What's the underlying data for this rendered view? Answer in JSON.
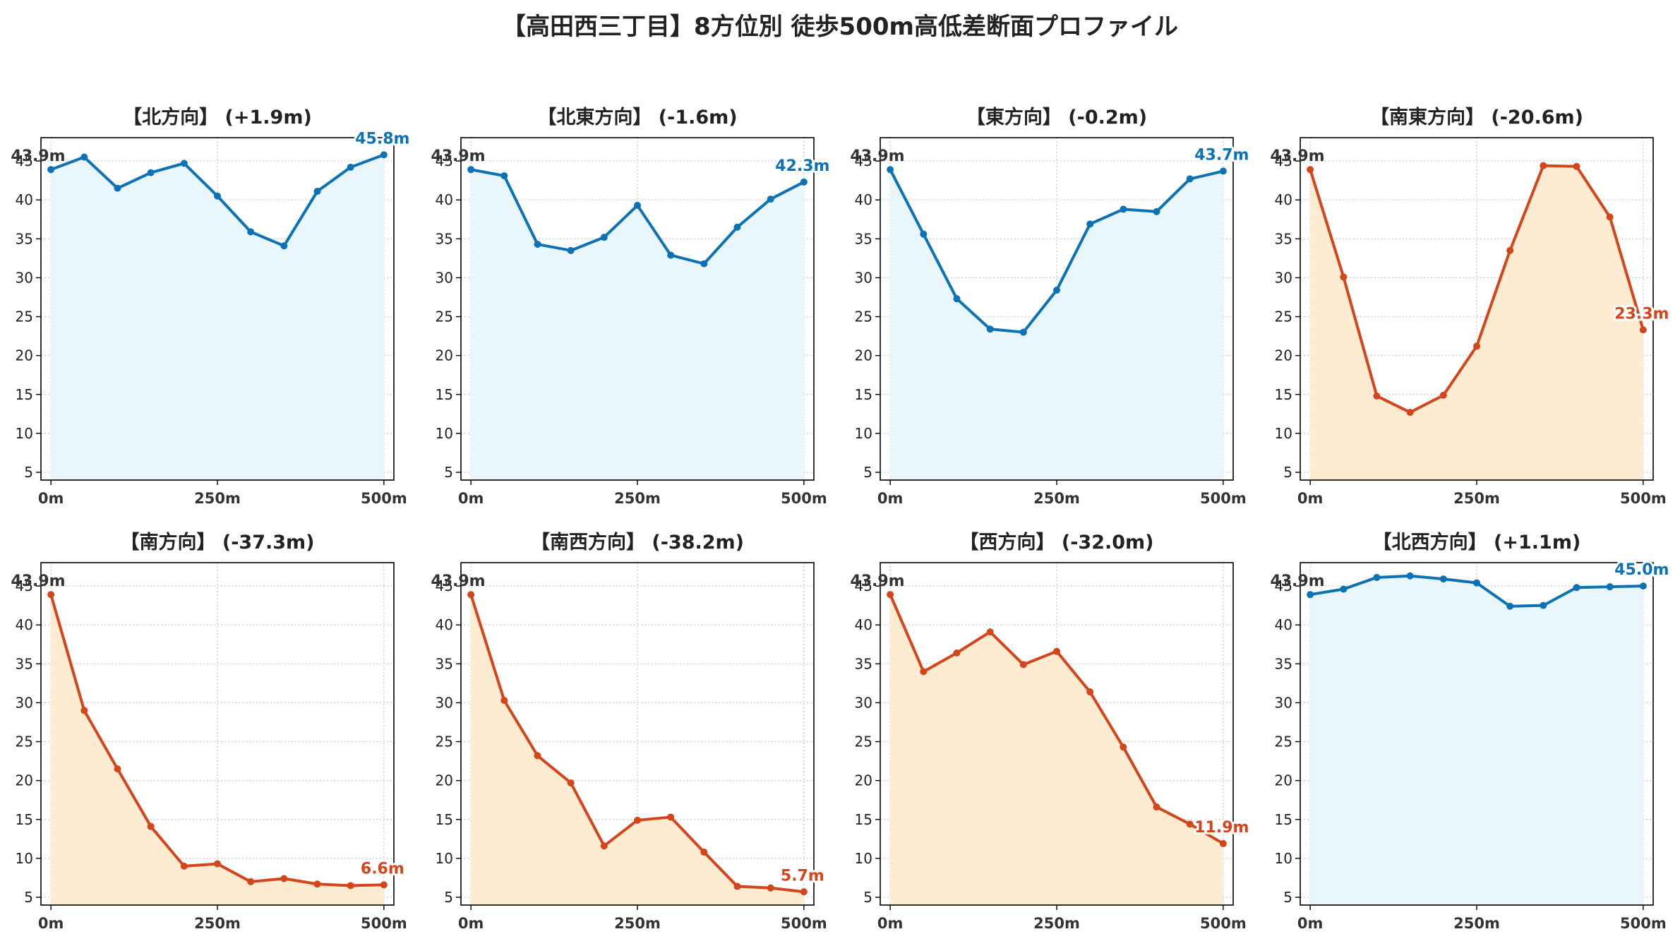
{
  "title": "【高田西三丁目】8方位別 徒歩500m高低差断面プロファイル",
  "colors": {
    "up": "#0a72b5",
    "up_fill": "#e9f6fb",
    "down": "#d5451b",
    "down_fill": "#fdecd2",
    "grid": "#c8c8c8",
    "start_label": "#333333"
  },
  "chart_data": [
    {
      "type": "line",
      "title": "【北方向】 (+1.9m)",
      "trend": "up",
      "x": [
        0,
        50,
        100,
        150,
        200,
        250,
        300,
        350,
        400,
        450,
        500
      ],
      "values": [
        43.9,
        45.5,
        41.5,
        43.5,
        44.7,
        40.5,
        35.9,
        34.1,
        41.1,
        44.2,
        45.8
      ],
      "start_label": "43.9m",
      "end_label": "45.8m",
      "xlim": [
        -15,
        515
      ],
      "ylim": [
        4,
        48
      ],
      "xticks": [
        0,
        250,
        500
      ],
      "xticklabels": [
        "0m",
        "250m",
        "500m"
      ],
      "yticks": [
        5,
        10,
        15,
        20,
        25,
        30,
        35,
        40,
        45
      ],
      "grid": true
    },
    {
      "type": "line",
      "title": "【北東方向】 (-1.6m)",
      "trend": "up",
      "x": [
        0,
        50,
        100,
        150,
        200,
        250,
        300,
        350,
        400,
        450,
        500
      ],
      "values": [
        43.9,
        43.1,
        34.3,
        33.5,
        35.2,
        39.3,
        32.9,
        31.8,
        36.5,
        40.1,
        42.3
      ],
      "start_label": "43.9m",
      "end_label": "42.3m",
      "xlim": [
        -15,
        515
      ],
      "ylim": [
        4,
        48
      ],
      "xticks": [
        0,
        250,
        500
      ],
      "xticklabels": [
        "0m",
        "250m",
        "500m"
      ],
      "yticks": [
        5,
        10,
        15,
        20,
        25,
        30,
        35,
        40,
        45
      ],
      "grid": true
    },
    {
      "type": "line",
      "title": "【東方向】 (-0.2m)",
      "trend": "up",
      "x": [
        0,
        50,
        100,
        150,
        200,
        250,
        300,
        350,
        400,
        450,
        500
      ],
      "values": [
        43.9,
        35.6,
        27.3,
        23.4,
        23.0,
        28.4,
        36.9,
        38.8,
        38.5,
        42.7,
        43.7
      ],
      "start_label": "43.9m",
      "end_label": "43.7m",
      "xlim": [
        -15,
        515
      ],
      "ylim": [
        4,
        48
      ],
      "xticks": [
        0,
        250,
        500
      ],
      "xticklabels": [
        "0m",
        "250m",
        "500m"
      ],
      "yticks": [
        5,
        10,
        15,
        20,
        25,
        30,
        35,
        40,
        45
      ],
      "grid": true
    },
    {
      "type": "line",
      "title": "【南東方向】 (-20.6m)",
      "trend": "down",
      "x": [
        0,
        50,
        100,
        150,
        200,
        250,
        300,
        350,
        400,
        450,
        500
      ],
      "values": [
        43.9,
        30.1,
        14.8,
        12.7,
        14.9,
        21.2,
        33.5,
        44.4,
        44.3,
        37.8,
        23.3
      ],
      "start_label": "43.9m",
      "end_label": "23.3m",
      "xlim": [
        -15,
        515
      ],
      "ylim": [
        4,
        48
      ],
      "xticks": [
        0,
        250,
        500
      ],
      "xticklabels": [
        "0m",
        "250m",
        "500m"
      ],
      "yticks": [
        5,
        10,
        15,
        20,
        25,
        30,
        35,
        40,
        45
      ],
      "grid": true
    },
    {
      "type": "line",
      "title": "【南方向】 (-37.3m)",
      "trend": "down",
      "x": [
        0,
        50,
        100,
        150,
        200,
        250,
        300,
        350,
        400,
        450,
        500
      ],
      "values": [
        43.9,
        29.0,
        21.5,
        14.1,
        9.0,
        9.3,
        7.0,
        7.4,
        6.7,
        6.5,
        6.6
      ],
      "start_label": "43.9m",
      "end_label": "6.6m",
      "xlim": [
        -15,
        515
      ],
      "ylim": [
        4,
        48
      ],
      "xticks": [
        0,
        250,
        500
      ],
      "xticklabels": [
        "0m",
        "250m",
        "500m"
      ],
      "yticks": [
        5,
        10,
        15,
        20,
        25,
        30,
        35,
        40,
        45
      ],
      "grid": true
    },
    {
      "type": "line",
      "title": "【南西方向】 (-38.2m)",
      "trend": "down",
      "x": [
        0,
        50,
        100,
        150,
        200,
        250,
        300,
        350,
        400,
        450,
        500
      ],
      "values": [
        43.9,
        30.3,
        23.2,
        19.7,
        11.6,
        14.9,
        15.3,
        10.8,
        6.4,
        6.2,
        5.7
      ],
      "start_label": "43.9m",
      "end_label": "5.7m",
      "xlim": [
        -15,
        515
      ],
      "ylim": [
        4,
        48
      ],
      "xticks": [
        0,
        250,
        500
      ],
      "xticklabels": [
        "0m",
        "250m",
        "500m"
      ],
      "yticks": [
        5,
        10,
        15,
        20,
        25,
        30,
        35,
        40,
        45
      ],
      "grid": true
    },
    {
      "type": "line",
      "title": "【西方向】 (-32.0m)",
      "trend": "down",
      "x": [
        0,
        50,
        100,
        150,
        200,
        250,
        300,
        350,
        400,
        450,
        500
      ],
      "values": [
        43.9,
        34.0,
        36.4,
        39.1,
        34.9,
        36.6,
        31.4,
        24.3,
        16.6,
        14.4,
        11.9
      ],
      "start_label": "43.9m",
      "end_label": "11.9m",
      "xlim": [
        -15,
        515
      ],
      "ylim": [
        4,
        48
      ],
      "xticks": [
        0,
        250,
        500
      ],
      "xticklabels": [
        "0m",
        "250m",
        "500m"
      ],
      "yticks": [
        5,
        10,
        15,
        20,
        25,
        30,
        35,
        40,
        45
      ],
      "grid": true
    },
    {
      "type": "line",
      "title": "【北西方向】 (+1.1m)",
      "trend": "up",
      "x": [
        0,
        50,
        100,
        150,
        200,
        250,
        300,
        350,
        400,
        450,
        500
      ],
      "values": [
        43.9,
        44.6,
        46.1,
        46.3,
        45.9,
        45.4,
        42.4,
        42.5,
        44.8,
        44.9,
        45.0
      ],
      "start_label": "43.9m",
      "end_label": "45.0m",
      "xlim": [
        -15,
        515
      ],
      "ylim": [
        4,
        48
      ],
      "xticks": [
        0,
        250,
        500
      ],
      "xticklabels": [
        "0m",
        "250m",
        "500m"
      ],
      "yticks": [
        5,
        10,
        15,
        20,
        25,
        30,
        35,
        40,
        45
      ],
      "grid": true
    }
  ]
}
